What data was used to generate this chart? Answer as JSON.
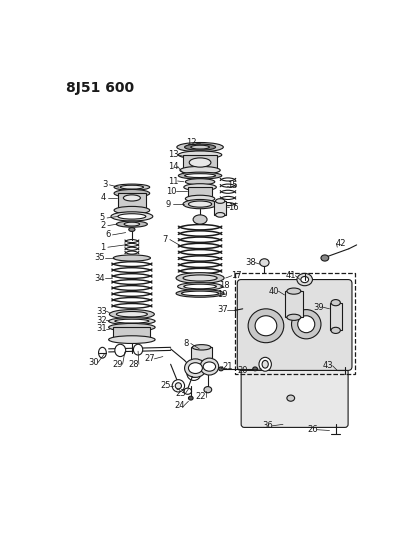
{
  "title": "8J51 600",
  "bg": "#ffffff",
  "lc": "#1a1a1a",
  "fig_w": 4.04,
  "fig_h": 5.33,
  "dpi": 100,
  "label_fs": 6.0,
  "title_fs": 10,
  "lw": 0.8
}
